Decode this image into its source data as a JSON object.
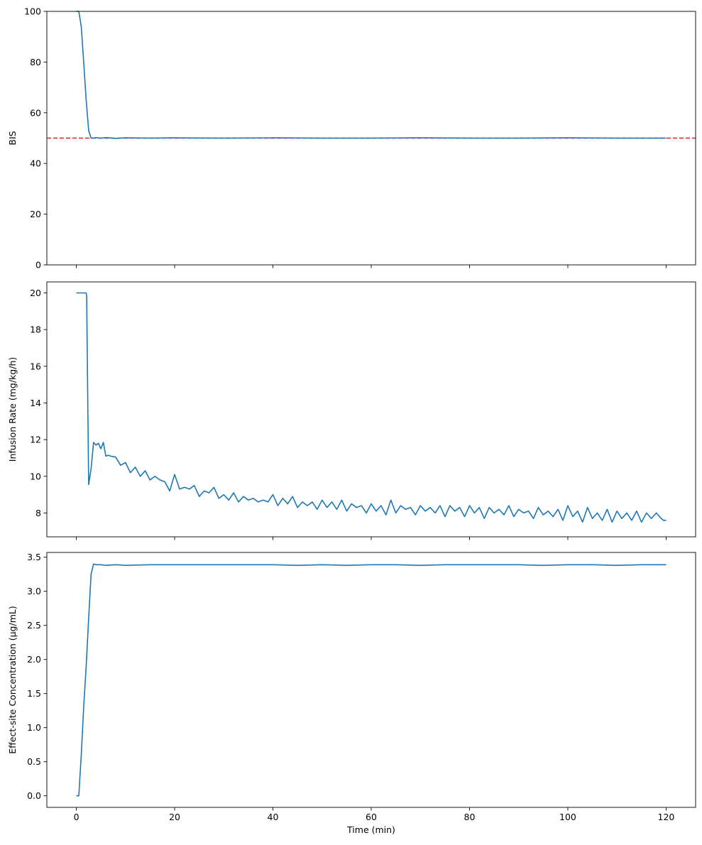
{
  "chart_data": [
    {
      "type": "line",
      "title": "",
      "xlabel": "",
      "ylabel": "BIS",
      "xlim": [
        -6,
        126
      ],
      "ylim": [
        0,
        100
      ],
      "grid": false,
      "xticks": [
        0,
        20,
        40,
        60,
        80,
        100,
        120
      ],
      "xtick_labels_visible": false,
      "yticks": [
        0,
        20,
        40,
        60,
        80,
        100
      ],
      "ytick_labels": [
        "0",
        "20",
        "40",
        "60",
        "80",
        "100"
      ],
      "reference_line": {
        "y": 50,
        "color": "#d62728",
        "style": "dashed"
      },
      "series": [
        {
          "color": "#1f77b4",
          "x": [
            0,
            0.5,
            1,
            1.5,
            2,
            2.5,
            3,
            3.5,
            4,
            5,
            6,
            8,
            10,
            15,
            20,
            30,
            40,
            50,
            60,
            70,
            80,
            90,
            100,
            110,
            120
          ],
          "y": [
            100,
            100,
            94,
            80,
            65,
            53,
            50,
            50,
            50.2,
            50,
            50.2,
            49.9,
            50.1,
            50,
            50.1,
            50,
            50.1,
            50,
            50,
            50.1,
            50,
            50,
            50.1,
            50,
            50
          ]
        }
      ]
    },
    {
      "type": "line",
      "title": "",
      "xlabel": "",
      "ylabel": "Infusion Rate (mg/kg/h)",
      "xlim": [
        -6,
        126
      ],
      "ylim": [
        6.7,
        20.6
      ],
      "grid": false,
      "xticks": [
        0,
        20,
        40,
        60,
        80,
        100,
        120
      ],
      "xtick_labels_visible": false,
      "yticks": [
        8,
        10,
        12,
        14,
        16,
        18,
        20
      ],
      "ytick_labels": [
        "8",
        "10",
        "12",
        "14",
        "16",
        "18",
        "20"
      ],
      "series": [
        {
          "color": "#1f77b4",
          "x": [
            0,
            2,
            2.1,
            2.5,
            3,
            3.5,
            4,
            4.5,
            5,
            5.5,
            6,
            6.5,
            7,
            8,
            9,
            10,
            11,
            12,
            13,
            14,
            15,
            16,
            17,
            18,
            19,
            20,
            21,
            22,
            23,
            24,
            25,
            26,
            27,
            28,
            29,
            30,
            31,
            32,
            33,
            34,
            35,
            36,
            37,
            38,
            39,
            40,
            41,
            42,
            43,
            44,
            45,
            46,
            47,
            48,
            49,
            50,
            51,
            52,
            53,
            54,
            55,
            56,
            57,
            58,
            59,
            60,
            61,
            62,
            63,
            64,
            65,
            66,
            67,
            68,
            69,
            70,
            71,
            72,
            73,
            74,
            75,
            76,
            77,
            78,
            79,
            80,
            81,
            82,
            83,
            84,
            85,
            86,
            87,
            88,
            89,
            90,
            91,
            92,
            93,
            94,
            95,
            96,
            97,
            98,
            99,
            100,
            101,
            102,
            103,
            104,
            105,
            106,
            107,
            108,
            109,
            110,
            111,
            112,
            113,
            114,
            115,
            116,
            117,
            118,
            119,
            119.5,
            120
          ],
          "y": [
            20,
            20,
            19.8,
            9.55,
            10.4,
            11.85,
            11.7,
            11.8,
            11.5,
            11.85,
            11.1,
            11.15,
            11.1,
            11.05,
            10.6,
            10.75,
            10.2,
            10.5,
            10.0,
            10.3,
            9.8,
            10.0,
            9.8,
            9.7,
            9.2,
            10.1,
            9.3,
            9.4,
            9.3,
            9.5,
            8.9,
            9.2,
            9.1,
            9.4,
            8.8,
            9.0,
            8.7,
            9.1,
            8.6,
            8.9,
            8.7,
            8.8,
            8.6,
            8.7,
            8.6,
            9.0,
            8.4,
            8.8,
            8.5,
            8.9,
            8.3,
            8.6,
            8.4,
            8.6,
            8.2,
            8.7,
            8.3,
            8.6,
            8.2,
            8.7,
            8.1,
            8.5,
            8.3,
            8.4,
            8.0,
            8.5,
            8.1,
            8.4,
            7.9,
            8.7,
            8.0,
            8.4,
            8.2,
            8.3,
            7.9,
            8.4,
            8.1,
            8.3,
            8.0,
            8.4,
            7.8,
            8.4,
            8.1,
            8.3,
            7.8,
            8.4,
            8.0,
            8.3,
            7.7,
            8.3,
            8.0,
            8.2,
            7.9,
            8.4,
            7.8,
            8.2,
            8.0,
            8.1,
            7.7,
            8.3,
            7.9,
            8.1,
            7.8,
            8.2,
            7.6,
            8.4,
            7.8,
            8.1,
            7.5,
            8.3,
            7.7,
            8.0,
            7.6,
            8.2,
            7.5,
            8.1,
            7.7,
            8.0,
            7.6,
            8.1,
            7.5,
            8.0,
            7.7,
            8.0,
            7.7,
            7.6,
            7.6
          ]
        }
      ]
    },
    {
      "type": "line",
      "title": "",
      "xlabel": "Time (min)",
      "ylabel": "Effect-site Concentration (µg/mL)",
      "xlim": [
        -6,
        126
      ],
      "ylim": [
        -0.17,
        3.57
      ],
      "grid": false,
      "xticks": [
        0,
        20,
        40,
        60,
        80,
        100,
        120
      ],
      "xtick_labels": [
        "0",
        "20",
        "40",
        "60",
        "80",
        "100",
        "120"
      ],
      "yticks": [
        0.0,
        0.5,
        1.0,
        1.5,
        2.0,
        2.5,
        3.0,
        3.5
      ],
      "ytick_labels": [
        "0.0",
        "0.5",
        "1.0",
        "1.5",
        "2.0",
        "2.5",
        "3.0",
        "3.5"
      ],
      "series": [
        {
          "color": "#1f77b4",
          "x": [
            0,
            0.5,
            1,
            1.5,
            2,
            2.5,
            3,
            3.5,
            4,
            5,
            6,
            8,
            10,
            15,
            20,
            25,
            30,
            35,
            40,
            45,
            50,
            55,
            60,
            65,
            70,
            75,
            80,
            85,
            90,
            95,
            100,
            105,
            110,
            115,
            120
          ],
          "y": [
            0,
            0,
            0.6,
            1.3,
            1.9,
            2.6,
            3.25,
            3.4,
            3.39,
            3.39,
            3.38,
            3.39,
            3.38,
            3.39,
            3.39,
            3.39,
            3.39,
            3.39,
            3.39,
            3.38,
            3.39,
            3.38,
            3.39,
            3.39,
            3.38,
            3.39,
            3.39,
            3.39,
            3.39,
            3.38,
            3.39,
            3.39,
            3.38,
            3.39,
            3.39
          ]
        }
      ]
    }
  ]
}
